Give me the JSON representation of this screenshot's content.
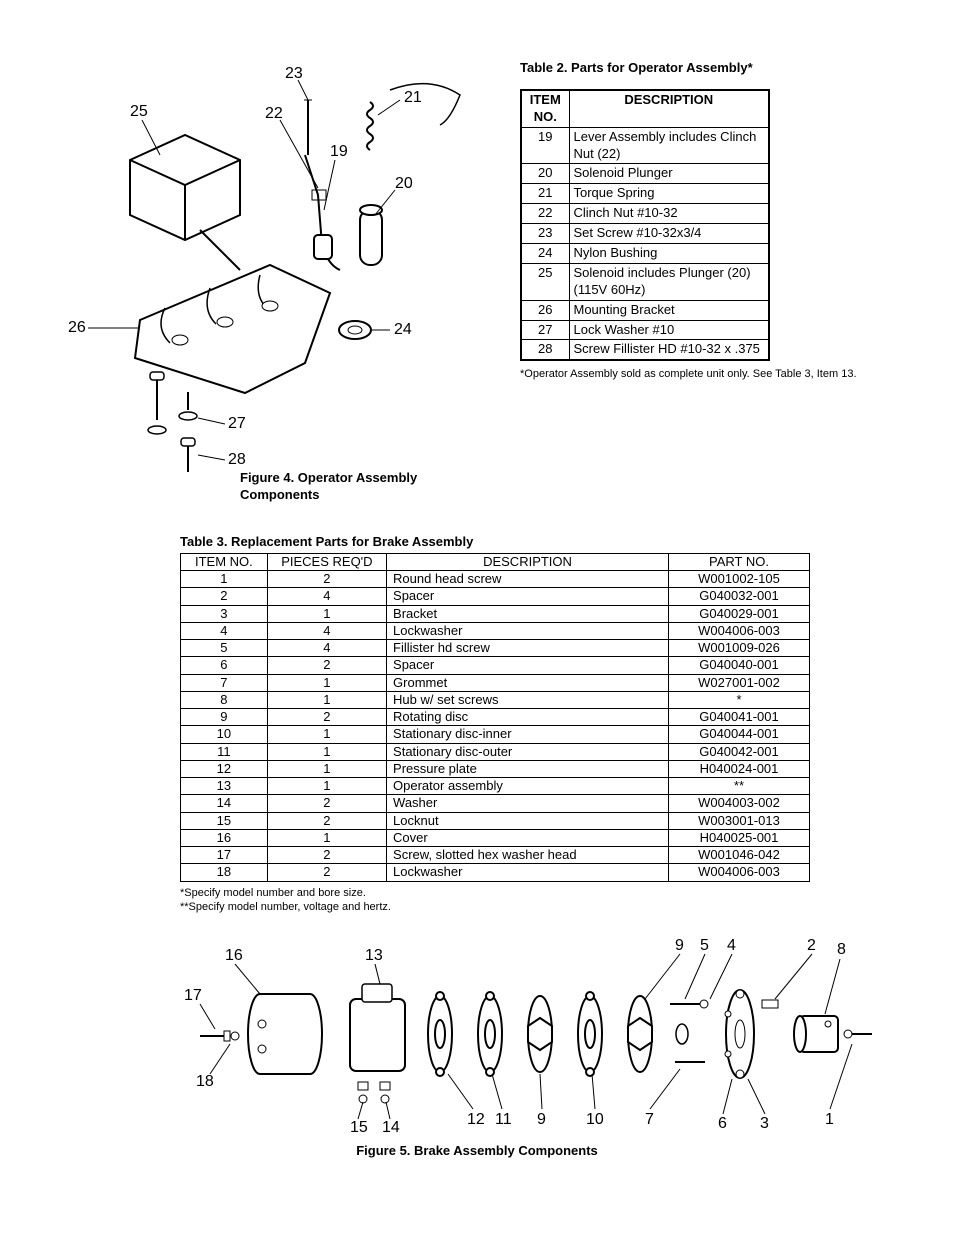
{
  "figure4": {
    "caption": "Figure 4. Operator Assembly Components",
    "callouts": [
      "19",
      "20",
      "21",
      "22",
      "23",
      "24",
      "25",
      "26",
      "27",
      "28"
    ]
  },
  "table2": {
    "title": "Table 2. Parts for Operator Assembly*",
    "header_item": "ITEM NO.",
    "header_desc": "DESCRIPTION",
    "rows": [
      {
        "no": "19",
        "desc": "Lever Assembly includes Clinch Nut (22)"
      },
      {
        "no": "20",
        "desc": "Solenoid Plunger"
      },
      {
        "no": "21",
        "desc": "Torque Spring"
      },
      {
        "no": "22",
        "desc": "Clinch Nut #10-32"
      },
      {
        "no": "23",
        "desc": "Set Screw #10-32x3/4"
      },
      {
        "no": "24",
        "desc": "Nylon Bushing"
      },
      {
        "no": "25",
        "desc": "Solenoid includes Plunger (20) (115V 60Hz)"
      },
      {
        "no": "26",
        "desc": "Mounting Bracket"
      },
      {
        "no": "27",
        "desc": "Lock Washer #10"
      },
      {
        "no": "28",
        "desc": "Screw Fillister HD #10-32 x .375"
      }
    ],
    "note": "*Operator Assembly sold as complete unit only. See Table 3, Item 13."
  },
  "table3": {
    "title": "Table 3. Replacement Parts for Brake Assembly",
    "headers": {
      "item": "ITEM NO.",
      "pieces": "PIECES REQ'D",
      "desc": "DESCRIPTION",
      "part": "PART NO."
    },
    "rows": [
      {
        "item": "1",
        "pieces": "2",
        "desc": "Round head screw",
        "part": "W001002-105"
      },
      {
        "item": "2",
        "pieces": "4",
        "desc": "Spacer",
        "part": "G040032-001"
      },
      {
        "item": "3",
        "pieces": "1",
        "desc": "Bracket",
        "part": "G040029-001"
      },
      {
        "item": "4",
        "pieces": "4",
        "desc": "Lockwasher",
        "part": "W004006-003"
      },
      {
        "item": "5",
        "pieces": "4",
        "desc": "Fillister hd screw",
        "part": "W001009-026"
      },
      {
        "item": "6",
        "pieces": "2",
        "desc": "Spacer",
        "part": "G040040-001"
      },
      {
        "item": "7",
        "pieces": "1",
        "desc": "Grommet",
        "part": "W027001-002"
      },
      {
        "item": "8",
        "pieces": "1",
        "desc": "Hub w/ set screws",
        "part": "*"
      },
      {
        "item": "9",
        "pieces": "2",
        "desc": "Rotating disc",
        "part": "G040041-001"
      },
      {
        "item": "10",
        "pieces": "1",
        "desc": "Stationary disc-inner",
        "part": "G040044-001"
      },
      {
        "item": "11",
        "pieces": "1",
        "desc": "Stationary disc-outer",
        "part": "G040042-001"
      },
      {
        "item": "12",
        "pieces": "1",
        "desc": "Pressure plate",
        "part": "H040024-001"
      },
      {
        "item": "13",
        "pieces": "1",
        "desc": "Operator assembly",
        "part": "**"
      },
      {
        "item": "14",
        "pieces": "2",
        "desc": "Washer",
        "part": "W004003-002"
      },
      {
        "item": "15",
        "pieces": "2",
        "desc": "Locknut",
        "part": "W003001-013"
      },
      {
        "item": "16",
        "pieces": "1",
        "desc": "Cover",
        "part": "H040025-001"
      },
      {
        "item": "17",
        "pieces": "2",
        "desc": "Screw, slotted hex washer head",
        "part": "W001046-042"
      },
      {
        "item": "18",
        "pieces": "2",
        "desc": "Lockwasher",
        "part": "W004006-003"
      }
    ],
    "notes": "*Specify model number and bore size.\n**Specify model number, voltage and hertz."
  },
  "figure5": {
    "caption": "Figure 5. Brake Assembly Components",
    "callouts": [
      "1",
      "2",
      "3",
      "4",
      "5",
      "6",
      "7",
      "8",
      "9",
      "10",
      "11",
      "12",
      "13",
      "14",
      "15",
      "16",
      "17",
      "18"
    ]
  }
}
